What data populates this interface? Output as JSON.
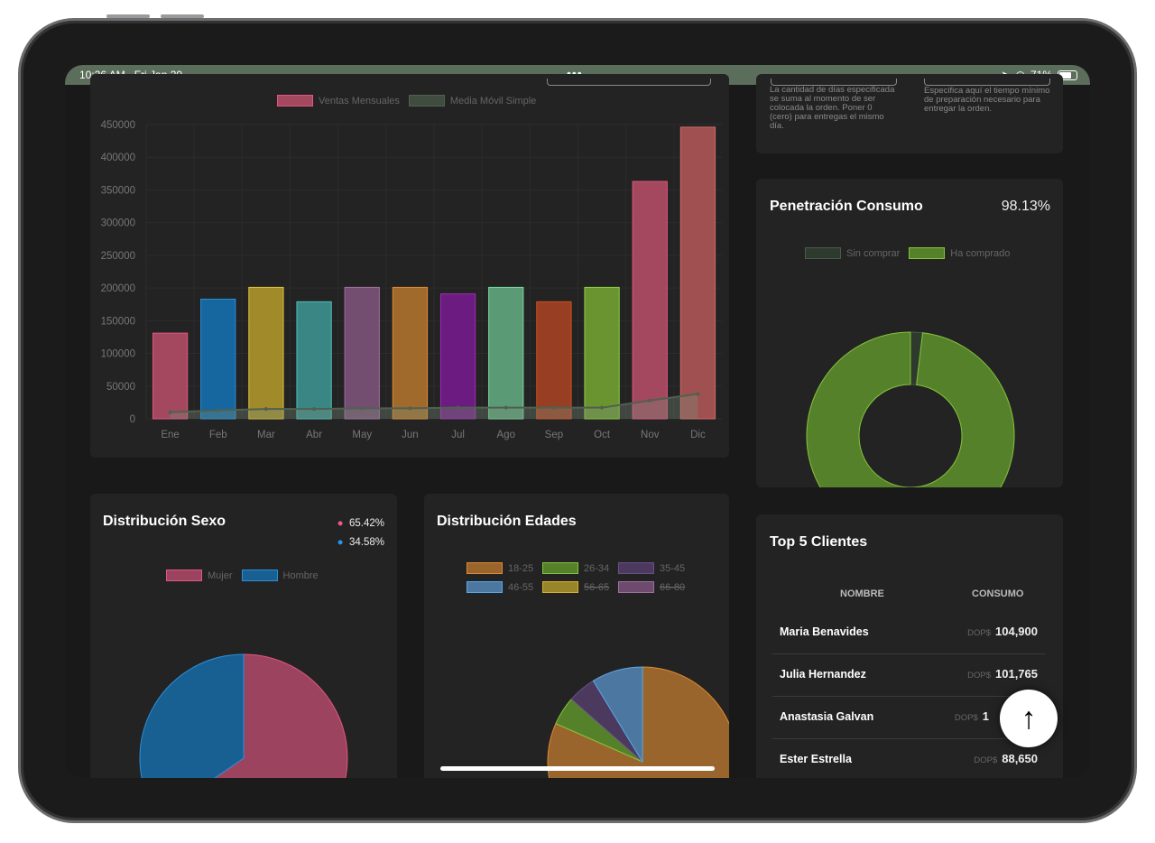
{
  "status_bar": {
    "time": "10:26 AM",
    "date": "Fri Jan 20",
    "battery": "71%",
    "battery_level": 0.71
  },
  "delivery_settings": {
    "days_help": "La cantidad de días especificada se suma al momento de ser colocada la orden. Poner 0 (cero) para entregas el mismo día.",
    "prep_help": "Especifica aquí el tiempo mínimo de preparación necesario para entregar la orden."
  },
  "chart_data": [
    {
      "type": "bar",
      "title": "",
      "legend": [
        "Ventas Mensuales",
        "Media Móvil Simple"
      ],
      "legend_position": "top",
      "categories": [
        "Ene",
        "Feb",
        "Mar",
        "Abr",
        "May",
        "Jun",
        "Jul",
        "Ago",
        "Sep",
        "Oct",
        "Nov",
        "Dic"
      ],
      "series": [
        {
          "name": "Ventas Mensuales",
          "type": "bar",
          "values": [
            131000,
            183000,
            201000,
            179000,
            201000,
            201000,
            191000,
            201000,
            179000,
            201000,
            363000,
            446000
          ]
        },
        {
          "name": "Media Móvil Simple",
          "type": "line",
          "values": [
            10000,
            13000,
            15000,
            15000,
            16000,
            16000,
            17000,
            17000,
            17000,
            17000,
            28000,
            38000
          ]
        }
      ],
      "bar_colors": [
        "#a3485f",
        "#1667a0",
        "#a08a2a",
        "#3a8684",
        "#744e70",
        "#a06a2c",
        "#6c1c80",
        "#5a9a74",
        "#983e22",
        "#6a9430",
        "#a3485f",
        "#a05050"
      ],
      "bar_borders": [
        "#e0577f",
        "#2b8fd8",
        "#e0c040",
        "#4fc0b8",
        "#a070a0",
        "#e08a30",
        "#9a30b0",
        "#7ad8a0",
        "#d05020",
        "#90d040",
        "#e0577f",
        "#d06a6a"
      ],
      "yticks": [
        0,
        50000,
        100000,
        150000,
        200000,
        250000,
        300000,
        350000,
        400000,
        450000
      ],
      "ylim": [
        0,
        450000
      ],
      "grid": true
    },
    {
      "type": "pie",
      "title": "Penetración Consumo",
      "subtitle": "98.13%",
      "donut": true,
      "legend": [
        "Sin comprar",
        "Ha comprado"
      ],
      "values": [
        1.87,
        98.13
      ],
      "colors": [
        "#2e3a2e",
        "#55812b"
      ],
      "borders": [
        "#4a5a4a",
        "#86c43a"
      ]
    },
    {
      "type": "pie",
      "title": "Distribución Sexo",
      "legend": [
        "Mujer",
        "Hombre"
      ],
      "values": [
        65.42,
        34.58
      ],
      "labels": [
        "65.42%",
        "34.58%"
      ],
      "dot_colors": [
        "#f0568a",
        "#2196f3"
      ],
      "colors": [
        "#9c4360",
        "#185f92"
      ],
      "borders": [
        "#e0577f",
        "#2b8fd8"
      ]
    },
    {
      "type": "pie",
      "title": "Distribución Edades",
      "legend": [
        "18-25",
        "26-34",
        "35-45",
        "46-55",
        "56-65",
        "66-80"
      ],
      "hidden": [
        false,
        false,
        false,
        false,
        true,
        true
      ],
      "values": [
        81.6,
        4.9,
        4.8,
        8.7,
        0,
        0
      ],
      "colors": [
        "#9a652c",
        "#55812b",
        "#4b3a5e",
        "#4c77a0",
        "#9a8428",
        "#6e4a6e"
      ],
      "borders": [
        "#e08a30",
        "#86c43a",
        "#6a508a",
        "#5aa8e8",
        "#d8b030",
        "#a070a0"
      ]
    }
  ],
  "top_clients": {
    "title": "Top 5 Clientes",
    "col_name": "NOMBRE",
    "col_value": "CONSUMO",
    "currency": "DOP$",
    "rows": [
      {
        "name": "Maria Benavides",
        "value": "104,900"
      },
      {
        "name": "Julia Hernandez",
        "value": "101,765"
      },
      {
        "name": "Anastasia Galvan",
        "value": "1"
      },
      {
        "name": "Ester Estrella",
        "value": "88,650"
      }
    ]
  },
  "scroll_top_icon": "arrow-up-icon"
}
